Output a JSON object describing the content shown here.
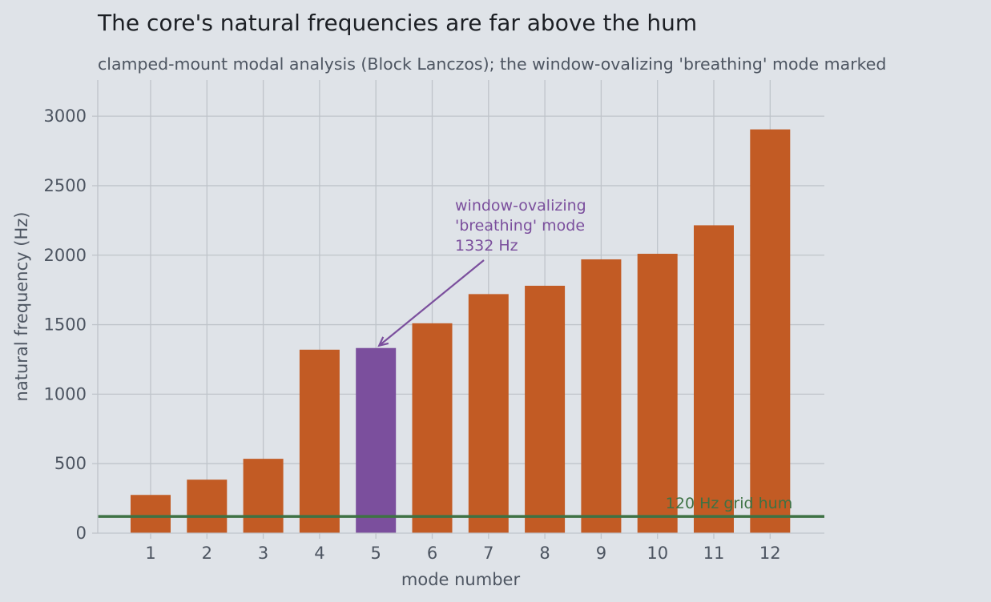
{
  "chart_data": {
    "type": "bar",
    "title": "The core's natural frequencies are far above the hum",
    "subtitle": "clamped-mount modal analysis (Block Lanczos); the window-ovalizing 'breathing' mode marked",
    "xlabel": "mode number",
    "ylabel": "natural frequency  (Hz)",
    "categories": [
      "1",
      "2",
      "3",
      "4",
      "5",
      "6",
      "7",
      "8",
      "9",
      "10",
      "11",
      "12"
    ],
    "values": [
      275,
      385,
      535,
      1320,
      1332,
      1510,
      1720,
      1780,
      1970,
      2010,
      2215,
      2905
    ],
    "ylim": [
      0,
      3260
    ],
    "yticks": [
      0,
      500,
      1000,
      1500,
      2000,
      2500,
      3000
    ],
    "grid": true,
    "highlight_index": 4,
    "colors": {
      "bar": "#c25b24",
      "highlight": "#7b4f9d",
      "reference_line": "#3e7244"
    },
    "annotation": {
      "lines": [
        "window-ovalizing",
        "'breathing' mode",
        "1332 Hz"
      ],
      "target_category": "5"
    },
    "reference_line": {
      "value": 120,
      "label": "120 Hz grid hum"
    }
  }
}
